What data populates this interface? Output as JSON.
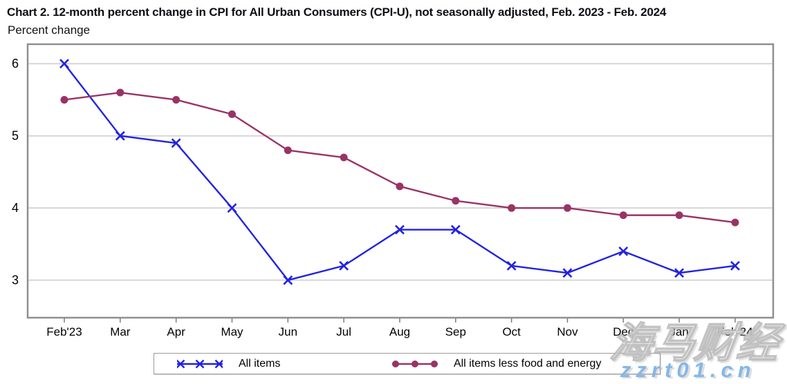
{
  "page": {
    "title": "Chart 2. 12-month percent change in CPI for All Urban Consumers (CPI-U), not seasonally adjusted, Feb. 2023 - Feb. 2024",
    "subtitle": "Percent change"
  },
  "watermark": {
    "brand": "海马财经",
    "domain": "zzrt01.cn"
  },
  "chart_data": {
    "type": "line",
    "title": "Chart 2. 12-month percent change in CPI for All Urban Consumers (CPI-U), not seasonally adjusted, Feb. 2023 - Feb. 2024",
    "ylabel": "Percent change",
    "xlabel": "",
    "categories": [
      "Feb'23",
      "Mar",
      "Apr",
      "May",
      "Jun",
      "Jul",
      "Aug",
      "Sep",
      "Oct",
      "Nov",
      "Dec",
      "Jan",
      "Feb'24"
    ],
    "series": [
      {
        "name": "All items",
        "marker": "x",
        "color": "#2121e3",
        "values": [
          6.0,
          5.0,
          4.9,
          4.0,
          3.0,
          3.2,
          3.7,
          3.7,
          3.2,
          3.1,
          3.4,
          3.1,
          3.2
        ]
      },
      {
        "name": "All items less food and energy",
        "marker": "circle",
        "color": "#993366",
        "values": [
          5.5,
          5.6,
          5.5,
          5.3,
          4.8,
          4.7,
          4.3,
          4.1,
          4.0,
          4.0,
          3.9,
          3.9,
          3.8
        ]
      }
    ],
    "yticks": [
      3,
      4,
      5,
      6
    ],
    "ylim": [
      2.48,
      6.27
    ],
    "grid": true,
    "legend_position": "bottom",
    "colors": {
      "grid": "#d6d6d6",
      "frame": "#8f8f8f",
      "tick": "#7a7a7a",
      "text": "#000000"
    }
  }
}
